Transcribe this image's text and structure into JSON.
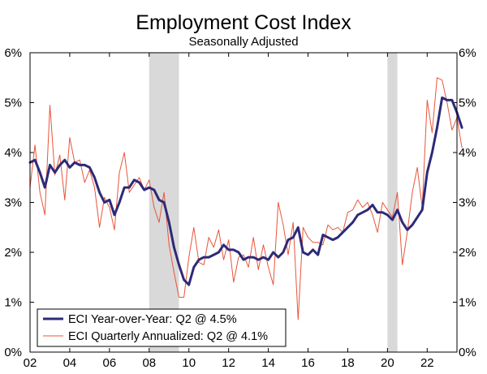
{
  "chart_data": {
    "type": "line",
    "title": "Employment Cost Index",
    "subtitle": "Seasonally Adjusted",
    "xlabel": "",
    "ylabel": "",
    "xlim": [
      2002,
      2023.5
    ],
    "ylim": [
      0,
      6
    ],
    "x_tick_labels": [
      {
        "x": 2002,
        "label": "02"
      },
      {
        "x": 2004,
        "label": "04"
      },
      {
        "x": 2006,
        "label": "06"
      },
      {
        "x": 2008,
        "label": "08"
      },
      {
        "x": 2010,
        "label": "10"
      },
      {
        "x": 2012,
        "label": "12"
      },
      {
        "x": 2014,
        "label": "14"
      },
      {
        "x": 2016,
        "label": "16"
      },
      {
        "x": 2018,
        "label": "18"
      },
      {
        "x": 2020,
        "label": "20"
      },
      {
        "x": 2022,
        "label": "22"
      }
    ],
    "y_ticks": [
      0,
      1,
      2,
      3,
      4,
      5,
      6
    ],
    "y_tick_labels": [
      "0%",
      "1%",
      "2%",
      "3%",
      "4%",
      "5%",
      "6%"
    ],
    "recessions": [
      [
        2008.0,
        2009.5
      ],
      [
        2020.0,
        2020.5
      ]
    ],
    "legend_position": "bottom-left",
    "series": [
      {
        "name": "ECI Year-over-Year: Q2 @ 4.5%",
        "color": "#2e2a78",
        "style": "thick",
        "start": 2002.0,
        "step": 0.25,
        "values": [
          3.8,
          3.85,
          3.6,
          3.3,
          3.75,
          3.6,
          3.75,
          3.85,
          3.7,
          3.8,
          3.75,
          3.75,
          3.7,
          3.5,
          3.2,
          3.0,
          3.05,
          2.75,
          3.0,
          3.3,
          3.3,
          3.45,
          3.4,
          3.25,
          3.3,
          3.25,
          3.05,
          3.0,
          2.6,
          2.1,
          1.75,
          1.45,
          1.35,
          1.7,
          1.85,
          1.9,
          1.9,
          1.95,
          2.0,
          2.15,
          2.05,
          2.05,
          2.0,
          1.85,
          1.9,
          1.9,
          1.85,
          1.9,
          1.85,
          2.0,
          1.9,
          2.0,
          2.25,
          2.3,
          2.5,
          2.0,
          1.95,
          2.05,
          1.95,
          2.35,
          2.3,
          2.25,
          2.3,
          2.4,
          2.5,
          2.6,
          2.75,
          2.8,
          2.85,
          2.95,
          2.8,
          2.8,
          2.75,
          2.65,
          2.85,
          2.6,
          2.45,
          2.55,
          2.7,
          2.85,
          3.6,
          4.0,
          4.5,
          5.1,
          5.05,
          5.05,
          4.8,
          4.5
        ]
      },
      {
        "name": "ECI Quarterly Annualized: Q2 @ 4.1%",
        "color": "#e8553a",
        "style": "thin",
        "start": 2002.0,
        "step": 0.25,
        "values": [
          3.3,
          4.15,
          3.2,
          2.75,
          4.95,
          3.55,
          3.95,
          3.05,
          4.3,
          3.8,
          3.85,
          3.4,
          3.65,
          3.3,
          2.5,
          3.1,
          2.9,
          2.45,
          3.6,
          4.0,
          3.2,
          3.35,
          3.5,
          3.25,
          3.45,
          2.9,
          2.6,
          3.2,
          2.15,
          1.6,
          1.1,
          1.1,
          1.9,
          2.5,
          1.8,
          1.75,
          2.3,
          2.1,
          2.45,
          1.85,
          2.25,
          1.4,
          1.9,
          1.95,
          1.7,
          2.3,
          1.65,
          2.15,
          1.7,
          1.35,
          3.0,
          2.55,
          1.95,
          2.6,
          0.65,
          2.5,
          2.3,
          2.2,
          2.2,
          2.15,
          2.55,
          2.45,
          2.5,
          2.4,
          2.8,
          2.85,
          3.05,
          2.9,
          3.0,
          2.75,
          2.4,
          3.0,
          2.85,
          2.7,
          3.2,
          1.75,
          2.4,
          3.2,
          3.7,
          2.9,
          5.05,
          4.4,
          5.5,
          5.45,
          5.0,
          4.45,
          4.7,
          4.1
        ]
      }
    ]
  }
}
